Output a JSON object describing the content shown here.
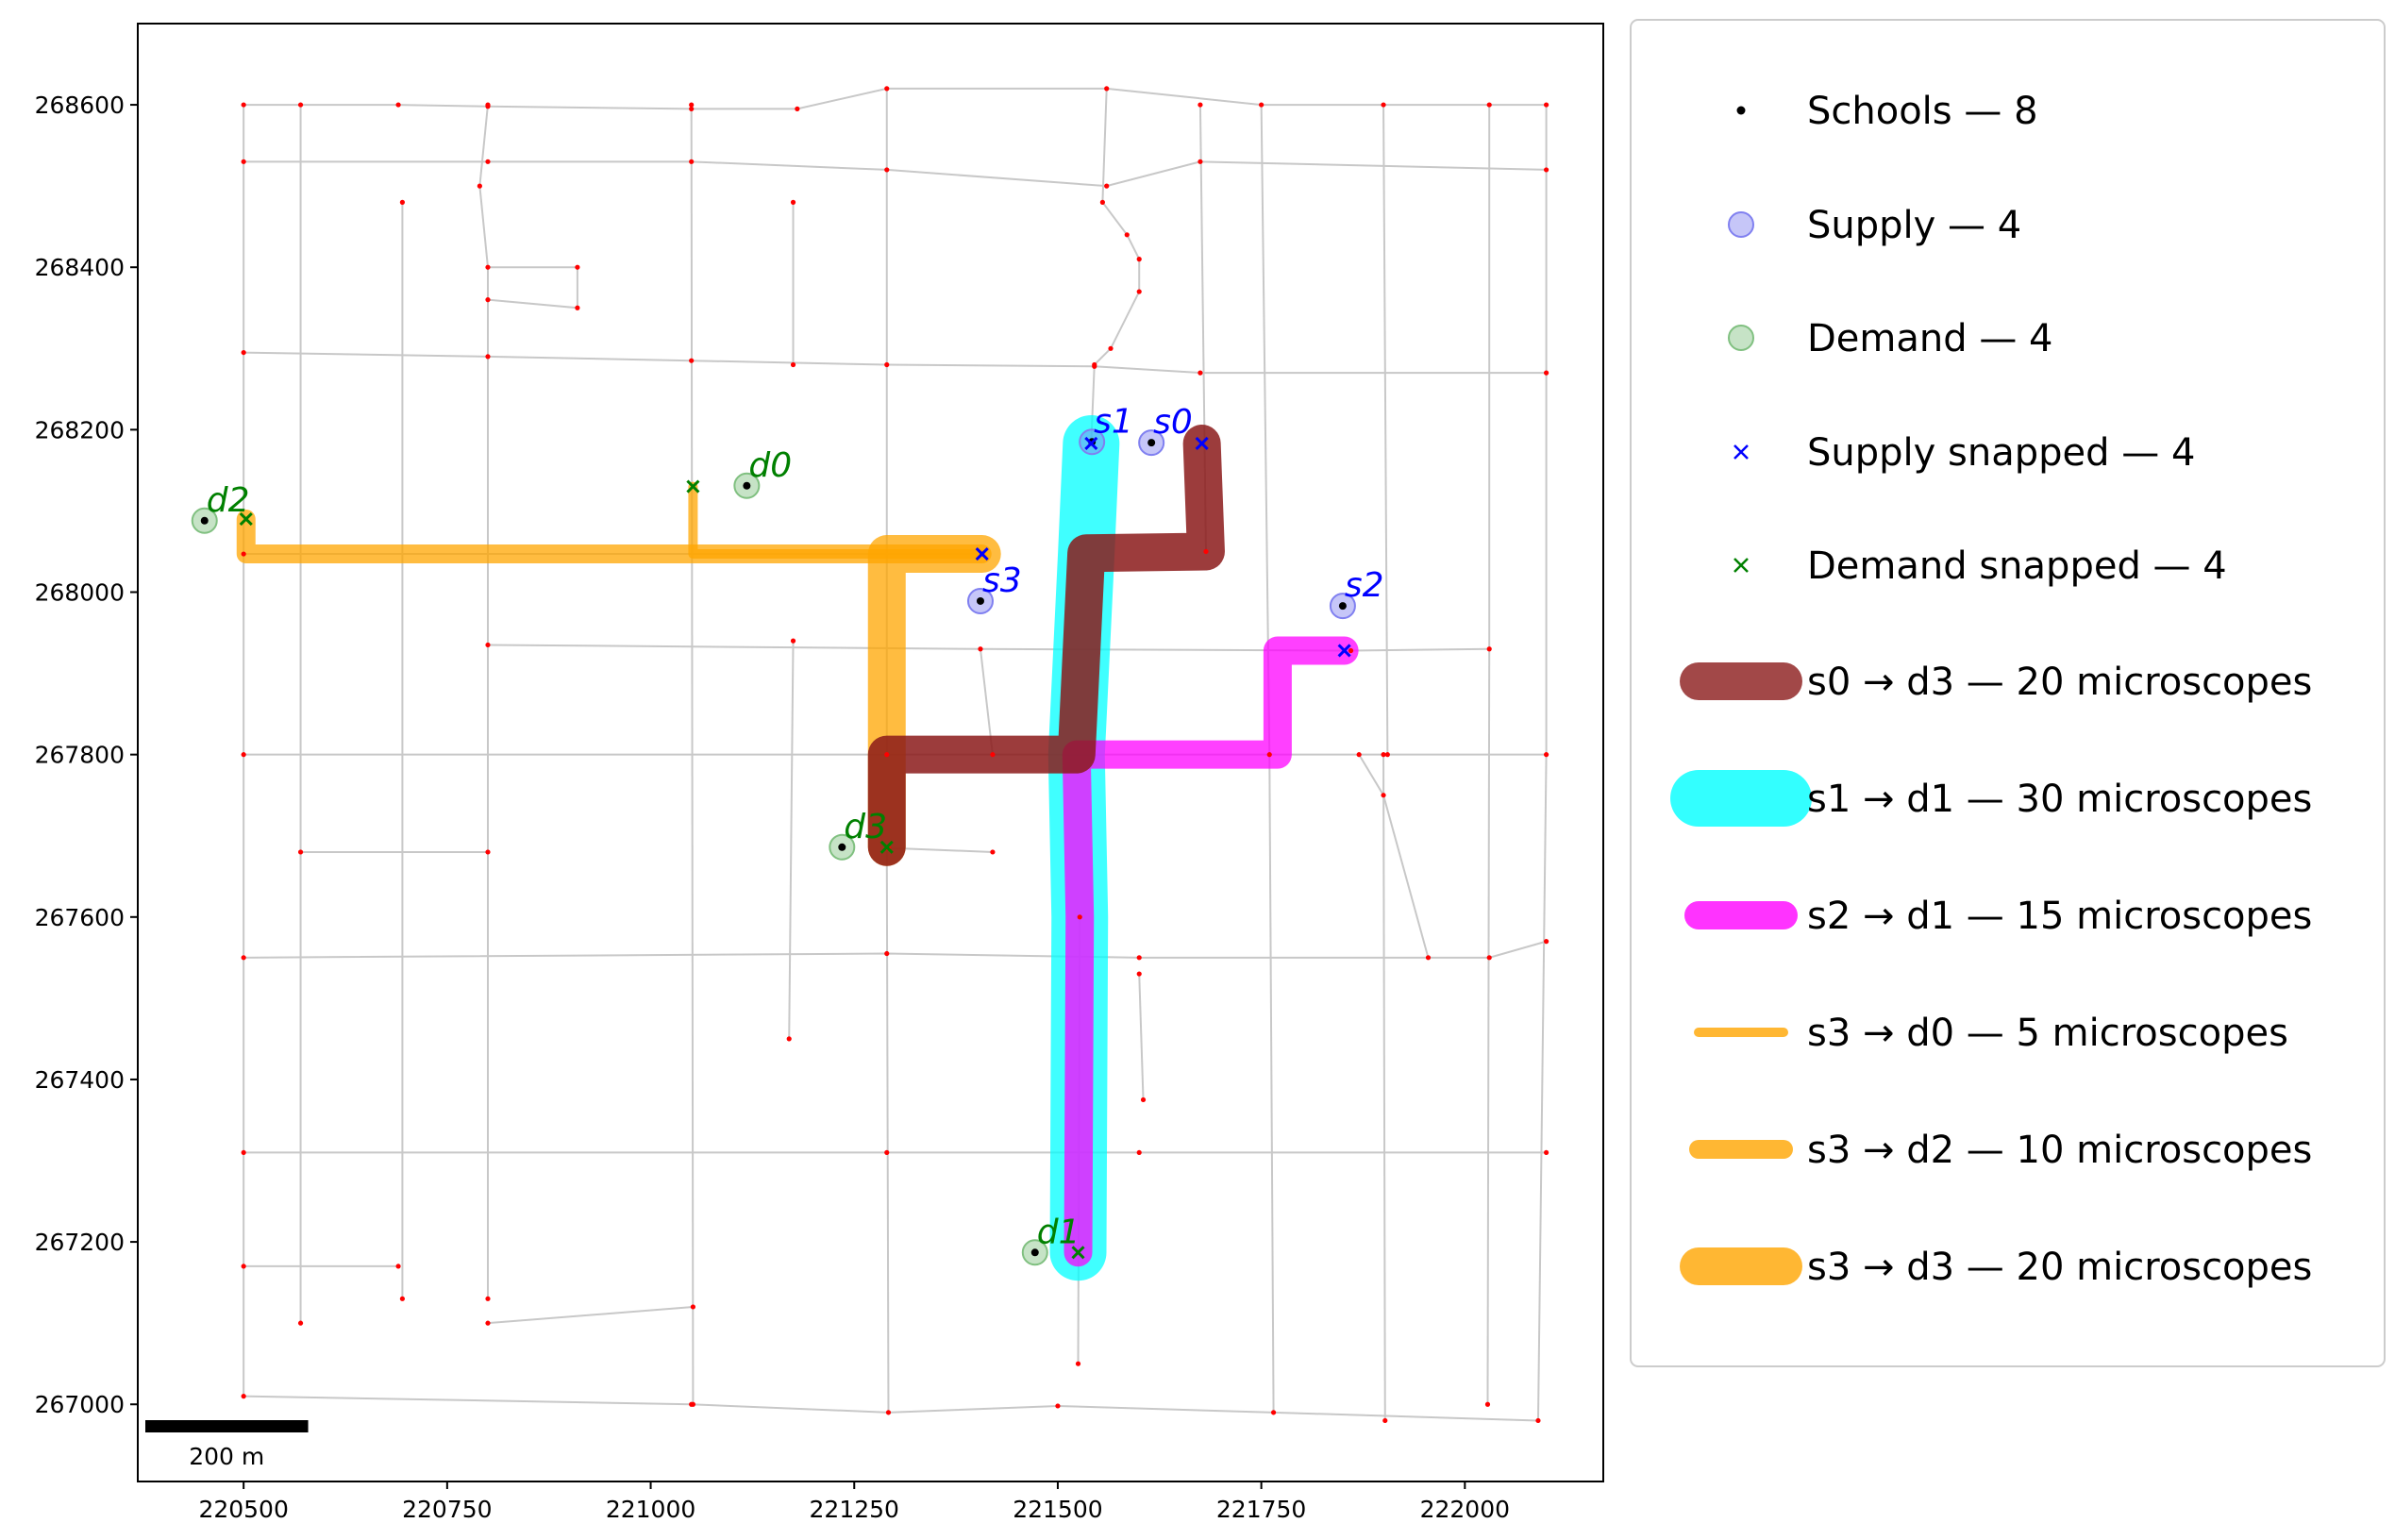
{
  "chart_data": {
    "type": "scatter",
    "title": "",
    "xlabel": "",
    "ylabel": "",
    "xlim": [
      220370,
      222170
    ],
    "ylim": [
      266905,
      268700
    ],
    "grid": false,
    "legend_location": "outside-right",
    "x_ticks": [
      "220500",
      "220750",
      "221000",
      "221250",
      "221500",
      "221750",
      "222000"
    ],
    "y_ticks": [
      "267000",
      "267200",
      "267400",
      "267600",
      "267800",
      "268000",
      "268200",
      "268400",
      "268600"
    ],
    "colors": {
      "network": "#c8c8c8",
      "node": "#ff0000",
      "school": "#000000",
      "supply": "#8080f0",
      "demand": "#80c080",
      "supply_snapped": "#0000ff",
      "demand_snapped": "#008000",
      "route_s0_d3": "#8b1a1a",
      "route_s1_d1": "#00ffff",
      "route_s2_d1": "#ff00ff",
      "route_s3": "#ffa500"
    },
    "scale_bar": {
      "length_m": 200,
      "label": "200 m"
    },
    "legend": [
      {
        "label": "Schools — 8",
        "kind": "dot"
      },
      {
        "label": "Supply — 4",
        "kind": "supply"
      },
      {
        "label": "Demand — 4",
        "kind": "demand"
      },
      {
        "label": "Supply snapped — 4",
        "kind": "xs"
      },
      {
        "label": "Demand snapped — 4",
        "kind": "xd"
      },
      {
        "label": "s0 → d3 — 20 microscopes",
        "kind": "route",
        "color": "#8b1a1a",
        "width": 20
      },
      {
        "label": "s1 → d1 — 30 microscopes",
        "kind": "route",
        "color": "#00ffff",
        "width": 30
      },
      {
        "label": "s2 → d1 — 15 microscopes",
        "kind": "route",
        "color": "#ff00ff",
        "width": 15
      },
      {
        "label": "s3 → d0 — 5 microscopes",
        "kind": "route",
        "color": "#ffa500",
        "width": 5
      },
      {
        "label": "s3 → d2 — 10 microscopes",
        "kind": "route",
        "color": "#ffa500",
        "width": 10
      },
      {
        "label": "s3 → d3 — 20 microscopes",
        "kind": "route",
        "color": "#ffa500",
        "width": 20
      }
    ],
    "schools": [
      {
        "x": 220452,
        "y": 268088
      },
      {
        "x": 221118,
        "y": 268131
      },
      {
        "x": 221472,
        "y": 267187
      },
      {
        "x": 221235,
        "y": 267686
      },
      {
        "x": 221542,
        "y": 268185
      },
      {
        "x": 221615,
        "y": 268184
      },
      {
        "x": 221850,
        "y": 267983
      },
      {
        "x": 221405,
        "y": 267989
      }
    ],
    "supply": [
      {
        "name": "s0",
        "x": 221615,
        "y": 268184
      },
      {
        "name": "s1",
        "x": 221542,
        "y": 268185
      },
      {
        "name": "s2",
        "x": 221850,
        "y": 267983
      },
      {
        "name": "s3",
        "x": 221405,
        "y": 267989
      }
    ],
    "demand": [
      {
        "name": "d0",
        "x": 221118,
        "y": 268131
      },
      {
        "name": "d1",
        "x": 221472,
        "y": 267187
      },
      {
        "name": "d2",
        "x": 220452,
        "y": 268088
      },
      {
        "name": "d3",
        "x": 221235,
        "y": 267686
      }
    ],
    "supply_snapped": [
      {
        "x": 221677,
        "y": 268183
      },
      {
        "x": 221541,
        "y": 268183
      },
      {
        "x": 221852,
        "y": 267928
      },
      {
        "x": 221407,
        "y": 268047
      }
    ],
    "demand_snapped": [
      {
        "x": 221052,
        "y": 268130
      },
      {
        "x": 221525,
        "y": 267187
      },
      {
        "x": 220503,
        "y": 268090
      },
      {
        "x": 221290,
        "y": 267686
      }
    ],
    "routes": [
      {
        "name": "s3 → d2",
        "microscopes": 10,
        "color": "#ffa500",
        "points": [
          [
            221407,
            268047
          ],
          [
            221290,
            268047
          ],
          [
            221052,
            268047
          ],
          [
            220503,
            268047
          ],
          [
            220503,
            268090
          ]
        ]
      },
      {
        "name": "s3 → d0",
        "microscopes": 5,
        "color": "#ffa500",
        "points": [
          [
            221407,
            268047
          ],
          [
            221052,
            268047
          ],
          [
            221052,
            268130
          ]
        ]
      },
      {
        "name": "s3 → d3",
        "microscopes": 20,
        "color": "#ffa500",
        "points": [
          [
            221407,
            268047
          ],
          [
            221290,
            268047
          ],
          [
            221290,
            267800
          ],
          [
            221290,
            267686
          ]
        ]
      },
      {
        "name": "s0 → d3",
        "microscopes": 20,
        "color": "#8b1a1a",
        "points": [
          [
            221677,
            268183
          ],
          [
            221682,
            268050
          ],
          [
            221535,
            268048
          ],
          [
            221523,
            267800
          ],
          [
            221290,
            267800
          ],
          [
            221290,
            267686
          ]
        ]
      },
      {
        "name": "s1 → d1",
        "microscopes": 30,
        "color": "#00ffff",
        "points": [
          [
            221541,
            268183
          ],
          [
            221535,
            268048
          ],
          [
            221523,
            267800
          ],
          [
            221527,
            267600
          ],
          [
            221525,
            267187
          ]
        ]
      },
      {
        "name": "s2 → d1",
        "microscopes": 15,
        "color": "#ff00ff",
        "points": [
          [
            221852,
            267928
          ],
          [
            221770,
            267928
          ],
          [
            221770,
            267800
          ],
          [
            221523,
            267800
          ],
          [
            221527,
            267600
          ],
          [
            221525,
            267187
          ]
        ]
      }
    ]
  }
}
